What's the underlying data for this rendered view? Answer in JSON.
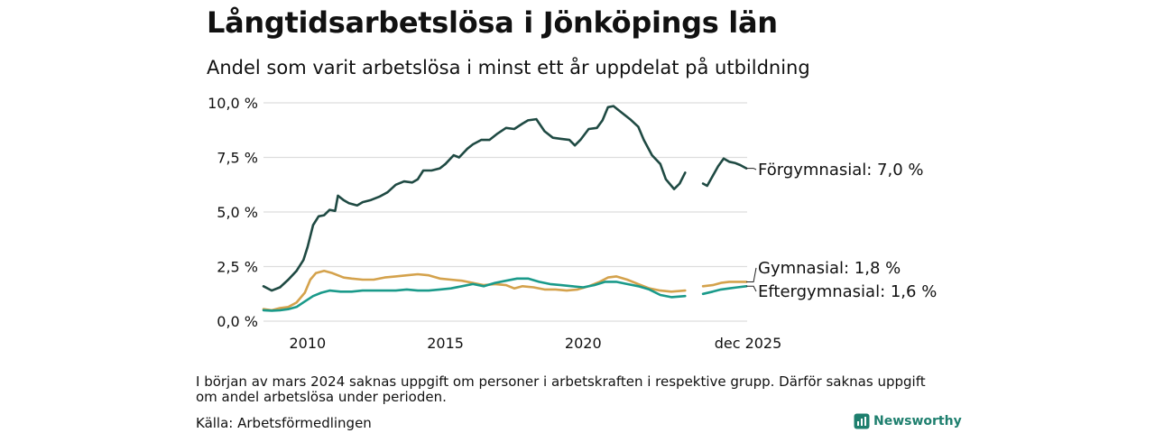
{
  "title": "Långtidsarbetslösa i Jönköpings län",
  "subtitle": "Andel som varit arbetslösa i minst ett år uppdelat på utbildning",
  "footnote": "I början av mars 2024 saknas uppgift om personer i arbetskraften i respektive grupp. Därför saknas uppgift om andel arbetslösa under perioden.",
  "source": "Källa: Arbetsförmedlingen",
  "brand": "Newsworthy",
  "colors": {
    "forgymnasial": "#1f4a43",
    "gymnasial": "#d4a24c",
    "eftergymnasial": "#1a9a8a",
    "grid": "#dddddd",
    "brand": "#1e7f6e"
  },
  "chart_data": {
    "type": "line",
    "ylim": [
      0,
      10
    ],
    "yticks": [
      0,
      2.5,
      5,
      7.5,
      10
    ],
    "ytick_labels": [
      "0,0 %",
      "2,5 %",
      "5,0 %",
      "7,5 %",
      "10,0 %"
    ],
    "xlim": [
      2008.4,
      2025.95
    ],
    "xticks": [
      2010,
      2015,
      2020,
      2025.92
    ],
    "xtick_labels": [
      "2010",
      "2015",
      "2020",
      "dec 2025"
    ],
    "gap": [
      2024.0,
      2024.35
    ],
    "series": [
      {
        "name": "Förgymnasial",
        "label": "Förgymnasial: 7,0 %",
        "color_key": "forgymnasial",
        "points": [
          [
            2008.4,
            1.6
          ],
          [
            2008.7,
            1.4
          ],
          [
            2009.0,
            1.55
          ],
          [
            2009.3,
            1.9
          ],
          [
            2009.6,
            2.3
          ],
          [
            2009.85,
            2.8
          ],
          [
            2010.0,
            3.4
          ],
          [
            2010.2,
            4.4
          ],
          [
            2010.4,
            4.8
          ],
          [
            2010.6,
            4.85
          ],
          [
            2010.8,
            5.1
          ],
          [
            2011.0,
            5.05
          ],
          [
            2011.1,
            5.75
          ],
          [
            2011.3,
            5.55
          ],
          [
            2011.5,
            5.4
          ],
          [
            2011.8,
            5.3
          ],
          [
            2012.0,
            5.45
          ],
          [
            2012.3,
            5.55
          ],
          [
            2012.6,
            5.7
          ],
          [
            2012.9,
            5.9
          ],
          [
            2013.2,
            6.25
          ],
          [
            2013.5,
            6.4
          ],
          [
            2013.8,
            6.35
          ],
          [
            2014.0,
            6.5
          ],
          [
            2014.2,
            6.9
          ],
          [
            2014.5,
            6.9
          ],
          [
            2014.8,
            7.0
          ],
          [
            2015.0,
            7.2
          ],
          [
            2015.3,
            7.6
          ],
          [
            2015.5,
            7.5
          ],
          [
            2015.8,
            7.9
          ],
          [
            2016.0,
            8.1
          ],
          [
            2016.3,
            8.3
          ],
          [
            2016.6,
            8.3
          ],
          [
            2016.9,
            8.6
          ],
          [
            2017.2,
            8.85
          ],
          [
            2017.5,
            8.8
          ],
          [
            2017.8,
            9.05
          ],
          [
            2018.0,
            9.2
          ],
          [
            2018.3,
            9.25
          ],
          [
            2018.6,
            8.7
          ],
          [
            2018.9,
            8.4
          ],
          [
            2019.2,
            8.35
          ],
          [
            2019.5,
            8.3
          ],
          [
            2019.7,
            8.05
          ],
          [
            2019.9,
            8.3
          ],
          [
            2020.2,
            8.8
          ],
          [
            2020.5,
            8.85
          ],
          [
            2020.7,
            9.2
          ],
          [
            2020.9,
            9.8
          ],
          [
            2021.1,
            9.85
          ],
          [
            2021.4,
            9.55
          ],
          [
            2021.7,
            9.25
          ],
          [
            2022.0,
            8.9
          ],
          [
            2022.2,
            8.3
          ],
          [
            2022.5,
            7.6
          ],
          [
            2022.8,
            7.2
          ],
          [
            2023.0,
            6.5
          ],
          [
            2023.3,
            6.05
          ],
          [
            2023.5,
            6.3
          ],
          [
            2023.7,
            6.8
          ],
          [
            2024.35,
            6.3
          ],
          [
            2024.5,
            6.2
          ],
          [
            2024.7,
            6.65
          ],
          [
            2024.9,
            7.1
          ],
          [
            2025.1,
            7.45
          ],
          [
            2025.3,
            7.3
          ],
          [
            2025.5,
            7.25
          ],
          [
            2025.7,
            7.15
          ],
          [
            2025.92,
            7.0
          ]
        ]
      },
      {
        "name": "Gymnasial",
        "label": "Gymnasial: 1,8 %",
        "color_key": "gymnasial",
        "points": [
          [
            2008.4,
            0.55
          ],
          [
            2008.7,
            0.5
          ],
          [
            2009.0,
            0.6
          ],
          [
            2009.3,
            0.65
          ],
          [
            2009.6,
            0.85
          ],
          [
            2009.9,
            1.3
          ],
          [
            2010.1,
            1.9
          ],
          [
            2010.3,
            2.2
          ],
          [
            2010.6,
            2.3
          ],
          [
            2010.9,
            2.2
          ],
          [
            2011.1,
            2.1
          ],
          [
            2011.3,
            2.0
          ],
          [
            2011.6,
            1.95
          ],
          [
            2012.0,
            1.9
          ],
          [
            2012.4,
            1.9
          ],
          [
            2012.8,
            2.0
          ],
          [
            2013.2,
            2.05
          ],
          [
            2013.6,
            2.1
          ],
          [
            2014.0,
            2.15
          ],
          [
            2014.4,
            2.1
          ],
          [
            2014.8,
            1.95
          ],
          [
            2015.2,
            1.9
          ],
          [
            2015.6,
            1.85
          ],
          [
            2016.0,
            1.75
          ],
          [
            2016.4,
            1.65
          ],
          [
            2016.8,
            1.7
          ],
          [
            2017.2,
            1.65
          ],
          [
            2017.5,
            1.5
          ],
          [
            2017.8,
            1.6
          ],
          [
            2018.2,
            1.55
          ],
          [
            2018.6,
            1.45
          ],
          [
            2019.0,
            1.45
          ],
          [
            2019.4,
            1.4
          ],
          [
            2019.8,
            1.45
          ],
          [
            2020.2,
            1.6
          ],
          [
            2020.6,
            1.8
          ],
          [
            2020.9,
            2.0
          ],
          [
            2021.2,
            2.05
          ],
          [
            2021.6,
            1.9
          ],
          [
            2022.0,
            1.7
          ],
          [
            2022.4,
            1.5
          ],
          [
            2022.8,
            1.4
          ],
          [
            2023.2,
            1.35
          ],
          [
            2023.7,
            1.4
          ],
          [
            2024.35,
            1.6
          ],
          [
            2024.7,
            1.65
          ],
          [
            2025.0,
            1.75
          ],
          [
            2025.3,
            1.8
          ],
          [
            2025.6,
            1.8
          ],
          [
            2025.92,
            1.8
          ]
        ]
      },
      {
        "name": "Eftergymnasial",
        "label": "Eftergymnasial: 1,6 %",
        "color_key": "eftergymnasial",
        "points": [
          [
            2008.4,
            0.5
          ],
          [
            2008.7,
            0.48
          ],
          [
            2009.0,
            0.5
          ],
          [
            2009.3,
            0.55
          ],
          [
            2009.6,
            0.65
          ],
          [
            2009.9,
            0.9
          ],
          [
            2010.2,
            1.15
          ],
          [
            2010.5,
            1.3
          ],
          [
            2010.8,
            1.4
          ],
          [
            2011.2,
            1.35
          ],
          [
            2011.6,
            1.35
          ],
          [
            2012.0,
            1.4
          ],
          [
            2012.4,
            1.4
          ],
          [
            2012.8,
            1.4
          ],
          [
            2013.2,
            1.4
          ],
          [
            2013.6,
            1.45
          ],
          [
            2014.0,
            1.4
          ],
          [
            2014.4,
            1.4
          ],
          [
            2014.8,
            1.45
          ],
          [
            2015.2,
            1.5
          ],
          [
            2015.6,
            1.6
          ],
          [
            2016.0,
            1.7
          ],
          [
            2016.4,
            1.6
          ],
          [
            2016.8,
            1.75
          ],
          [
            2017.2,
            1.85
          ],
          [
            2017.6,
            1.95
          ],
          [
            2018.0,
            1.95
          ],
          [
            2018.4,
            1.8
          ],
          [
            2018.8,
            1.7
          ],
          [
            2019.2,
            1.65
          ],
          [
            2019.6,
            1.6
          ],
          [
            2020.0,
            1.55
          ],
          [
            2020.4,
            1.65
          ],
          [
            2020.8,
            1.8
          ],
          [
            2021.2,
            1.8
          ],
          [
            2021.6,
            1.7
          ],
          [
            2022.0,
            1.6
          ],
          [
            2022.4,
            1.45
          ],
          [
            2022.8,
            1.2
          ],
          [
            2023.2,
            1.1
          ],
          [
            2023.7,
            1.15
          ],
          [
            2024.35,
            1.25
          ],
          [
            2024.7,
            1.35
          ],
          [
            2025.0,
            1.45
          ],
          [
            2025.3,
            1.5
          ],
          [
            2025.6,
            1.55
          ],
          [
            2025.92,
            1.6
          ]
        ]
      }
    ]
  }
}
